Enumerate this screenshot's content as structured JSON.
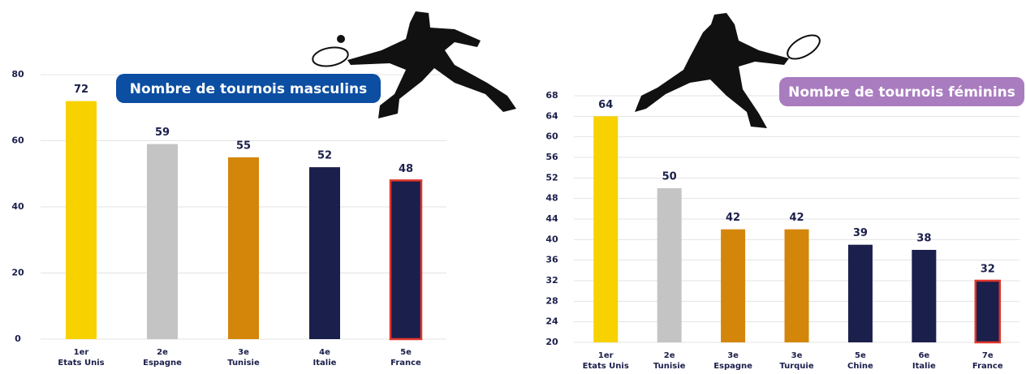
{
  "chart_data": [
    {
      "type": "bar",
      "title": "Nombre de tournois masculins",
      "title_color": "#0b4ea2",
      "ranks": [
        "1er",
        "2e",
        "3e",
        "4e",
        "5e"
      ],
      "categories": [
        "Etats Unis",
        "Espagne",
        "Tunisie",
        "Italie",
        "France"
      ],
      "values": [
        72,
        59,
        55,
        52,
        48
      ],
      "colors": [
        "#f7d100",
        "#c4c4c4",
        "#d4860b",
        "#1b1f4b",
        "#1b1f4b"
      ],
      "edgecolors": [
        null,
        null,
        null,
        null,
        "#e0352b"
      ],
      "ylim": [
        0,
        80
      ],
      "yticks": [
        0,
        20,
        40,
        60,
        80
      ],
      "grid": true
    },
    {
      "type": "bar",
      "title": "Nombre de tournois féminins",
      "title_color": "#a97cc0",
      "ranks": [
        "1er",
        "2e",
        "3e",
        "3e",
        "5e",
        "6e",
        "7e"
      ],
      "categories": [
        "Etats Unis",
        "Tunisie",
        "Espagne",
        "Turquie",
        "Chine",
        "Italie",
        "France"
      ],
      "values": [
        64,
        50,
        42,
        42,
        39,
        38,
        32
      ],
      "colors": [
        "#f7d100",
        "#c4c4c4",
        "#d4860b",
        "#d4860b",
        "#1b1f4b",
        "#1b1f4b",
        "#1b1f4b"
      ],
      "edgecolors": [
        null,
        null,
        null,
        null,
        null,
        null,
        "#e0352b"
      ],
      "ylim": [
        20,
        68
      ],
      "yticks": [
        20,
        24,
        28,
        32,
        36,
        40,
        44,
        48,
        52,
        56,
        60,
        64,
        68
      ],
      "grid": true
    }
  ]
}
